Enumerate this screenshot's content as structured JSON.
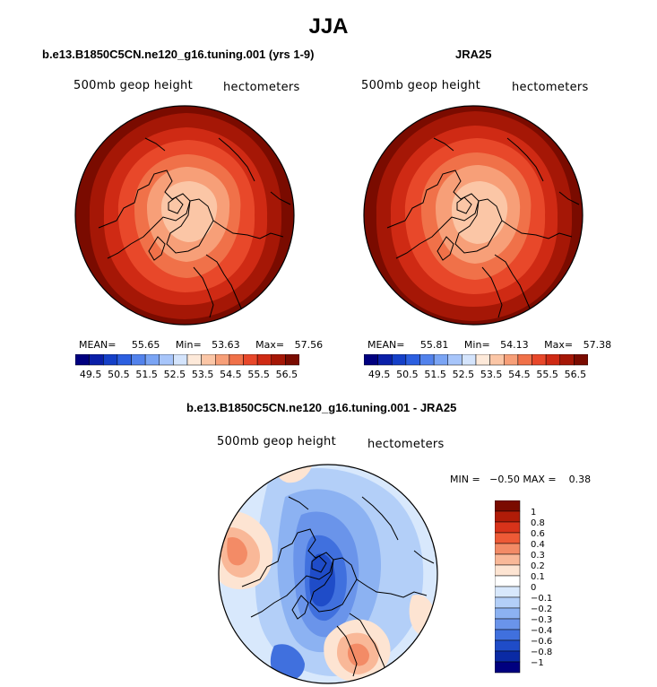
{
  "title": "JJA",
  "panels": [
    {
      "id": "model",
      "title": "b.e13.B1850C5CN.ne120_g16.tuning.001 (yrs 1-9)",
      "left_label": "500mb geop height",
      "right_label": "hectometers",
      "stats": {
        "mean_label": "MEAN=",
        "mean": "55.65",
        "min_label": "Min=",
        "min": "53.63",
        "max_label": "Max=",
        "max": "57.56"
      }
    },
    {
      "id": "obs",
      "title": "JRA25",
      "left_label": "500mb geop height",
      "right_label": "hectometers",
      "stats": {
        "mean_label": "MEAN=",
        "mean": "55.81",
        "min_label": "Min=",
        "min": "54.13",
        "max_label": "Max=",
        "max": "57.38"
      }
    }
  ],
  "diff_panel": {
    "title": "b.e13.B1850C5CN.ne120_g16.tuning.001 - JRA25",
    "left_label": "500mb geop height",
    "right_label": "hectometers",
    "minmax_text": "MIN =   −0.50 MAX =    0.38"
  },
  "chart_data": [
    {
      "type": "heatmap",
      "projection": "north polar stereographic",
      "title": "b.e13.B1850C5CN.ne120_g16.tuning.001 (yrs 1-9)",
      "variable": "500mb geop height",
      "units": "hectometers",
      "mean": 55.65,
      "min": 53.63,
      "max": 57.56,
      "colorbar_levels": [
        49.5,
        50,
        50.5,
        51,
        51.5,
        52,
        52.5,
        53,
        53.5,
        54,
        54.5,
        55,
        55.5,
        56,
        56.5
      ],
      "colorbar_tick_labels": [
        "49.5",
        "50.5",
        "51.5",
        "52.5",
        "53.5",
        "54.5",
        "55.5",
        "56.5"
      ]
    },
    {
      "type": "heatmap",
      "projection": "north polar stereographic",
      "title": "JRA25",
      "variable": "500mb geop height",
      "units": "hectometers",
      "mean": 55.81,
      "min": 54.13,
      "max": 57.38,
      "colorbar_levels": [
        49.5,
        50,
        50.5,
        51,
        51.5,
        52,
        52.5,
        53,
        53.5,
        54,
        54.5,
        55,
        55.5,
        56,
        56.5
      ],
      "colorbar_tick_labels": [
        "49.5",
        "50.5",
        "51.5",
        "52.5",
        "53.5",
        "54.5",
        "55.5",
        "56.5"
      ]
    },
    {
      "type": "heatmap",
      "projection": "north polar stereographic",
      "title": "b.e13.B1850C5CN.ne120_g16.tuning.001 - JRA25",
      "variable": "500mb geop height",
      "units": "hectometers",
      "min": -0.5,
      "max": 0.38,
      "colorbar_levels": [
        1,
        0.8,
        0.6,
        0.4,
        0.3,
        0.2,
        0.1,
        0,
        -0.1,
        -0.2,
        -0.3,
        -0.4,
        -0.6,
        -0.8,
        -1
      ],
      "colorbar_tick_labels": [
        "1",
        "0.8",
        "0.6",
        "0.4",
        "0.3",
        "0.2",
        "0.1",
        "0",
        "−0.1",
        "−0.2",
        "−0.3",
        "−0.4",
        "−0.6",
        "−0.8",
        "−1"
      ]
    }
  ],
  "colors": {
    "seq_scale": [
      "#00007f",
      "#0a1fa8",
      "#1540c8",
      "#2c5fe0",
      "#5282ec",
      "#7aa4f4",
      "#a7c5fa",
      "#d4e4fc",
      "#fde9d9",
      "#fbc6a6",
      "#f79f78",
      "#f07149",
      "#e8482a",
      "#cf2a14",
      "#a51706",
      "#7a0b00"
    ],
    "div_scale": [
      "#7a0b00",
      "#b01c08",
      "#d8331a",
      "#ee5a36",
      "#f38b66",
      "#f9b898",
      "#fde4d2",
      "#ffffff",
      "#d8e8fc",
      "#b3cff8",
      "#8cb2f2",
      "#6a94ea",
      "#4070de",
      "#1f4cc8",
      "#0a2aa4",
      "#00007f"
    ]
  }
}
